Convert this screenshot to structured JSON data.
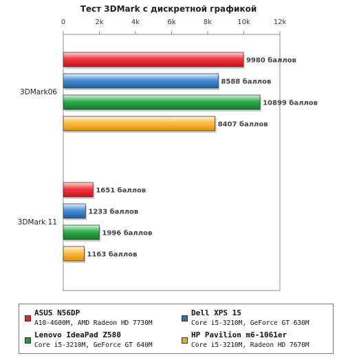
{
  "chart_data": {
    "type": "bar",
    "orientation": "horizontal",
    "title": "Тест 3DMark с дискретной графикой",
    "xlim": [
      0,
      12000
    ],
    "x_ticks": [
      0,
      2000,
      4000,
      6000,
      8000,
      10000,
      12000
    ],
    "x_tick_labels": [
      "0",
      "2k",
      "4k",
      "6k",
      "8k",
      "10k",
      "12k"
    ],
    "grid": false,
    "legend_position": "bottom",
    "categories": [
      "3DMark06",
      "3DMark 11"
    ],
    "value_suffix": "баллов",
    "series": [
      {
        "name": "ASUS N56DP",
        "spec": "A10-4600M, AMD Radeon HD 7730M",
        "color": "#e8202a",
        "values": [
          9980,
          1651
        ]
      },
      {
        "name": "Dell XPS 15",
        "spec": "Core i5-3210M, GeForce GT 630M",
        "color": "#2a72c0",
        "values": [
          8588,
          1233
        ]
      },
      {
        "name": "Lenovo IdeaPad Z580",
        "spec": "Core i5-3210M, GeForce GT 640M",
        "color": "#1f9a3c",
        "values": [
          10899,
          1996
        ]
      },
      {
        "name": "HP Pavilion m6-1061er",
        "spec": "Core i5-3210M, Radeon HD 7670M",
        "color": "#f5a623",
        "values": [
          8407,
          1163
        ]
      }
    ]
  }
}
